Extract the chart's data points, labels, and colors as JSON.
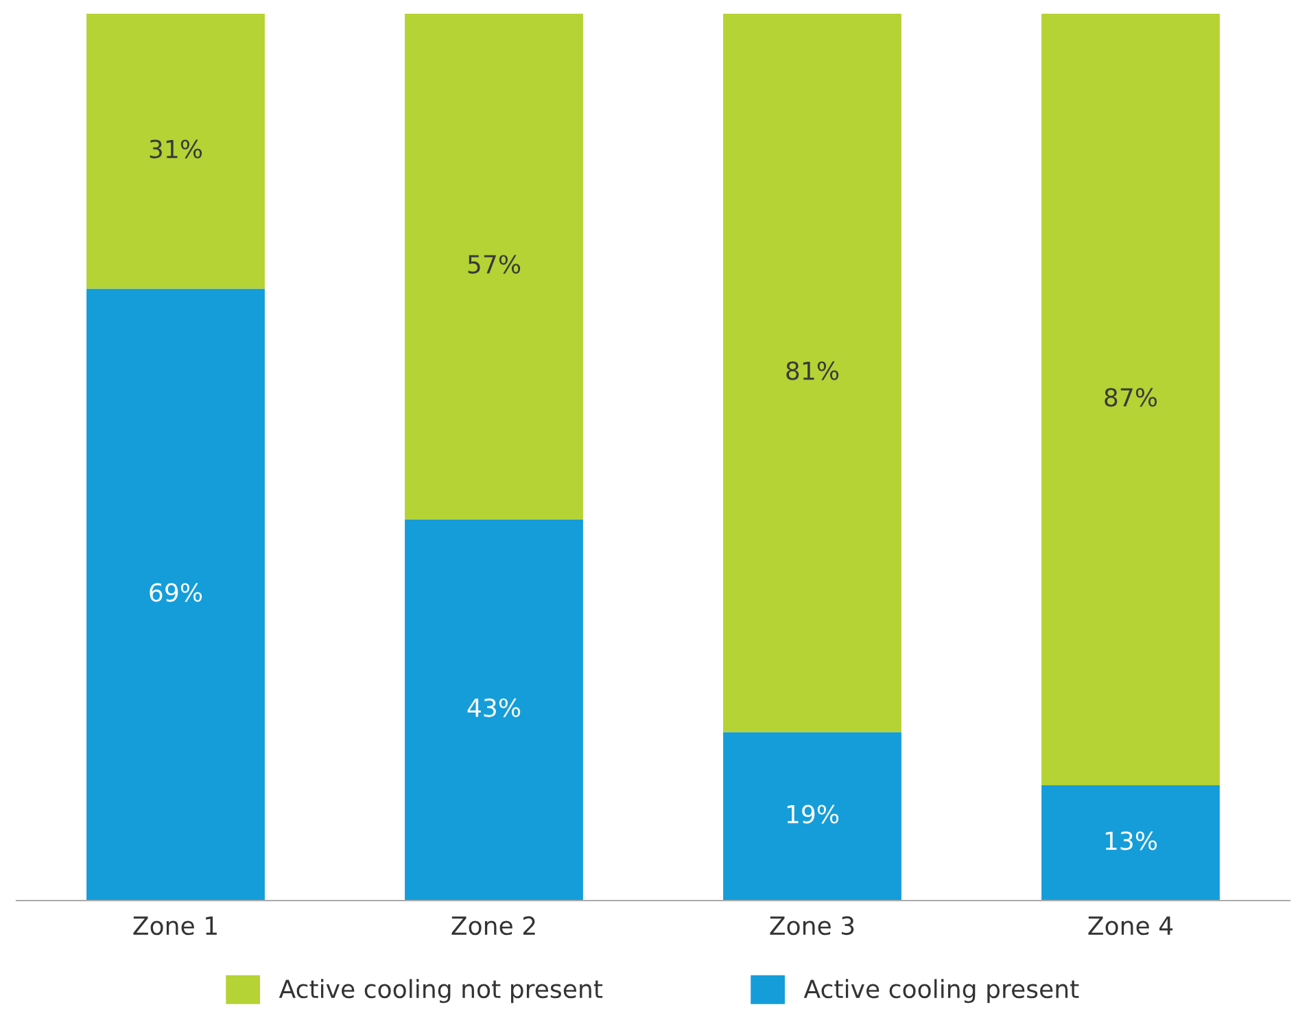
{
  "chart_data": {
    "type": "bar",
    "stacked": true,
    "categories": [
      "Zone 1",
      "Zone 2",
      "Zone 3",
      "Zone 4"
    ],
    "series": [
      {
        "name": "Active cooling present",
        "color": "#159dd9",
        "values": [
          69,
          43,
          19,
          13
        ],
        "value_labels": [
          "69%",
          "43%",
          "19%",
          "13%"
        ]
      },
      {
        "name": "Active cooling not present",
        "color": "#b5d334",
        "values": [
          31,
          57,
          81,
          87
        ],
        "value_labels": [
          "31%",
          "57%",
          "81%",
          "87%"
        ]
      }
    ],
    "legend": "bottom"
  }
}
